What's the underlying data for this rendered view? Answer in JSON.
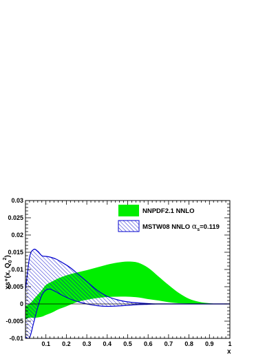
{
  "chart_data": {
    "type": "area",
    "title": "",
    "xlabel": "x",
    "ylabel_parts": {
      "base": "xs⁺(x, Q",
      "sub": "0",
      "sup": "2",
      "close": ")"
    },
    "xlim": [
      0.0,
      1.0
    ],
    "ylim": [
      -0.01,
      0.03
    ],
    "x_ticks": [
      0.1,
      0.2,
      0.3,
      0.4,
      0.5,
      0.6,
      0.7,
      0.8,
      0.9,
      1
    ],
    "x_tick_labels": [
      "0.1",
      "0.2",
      "0.3",
      "0.4",
      "0.5",
      "0.6",
      "0.7",
      "0.8",
      "0.9",
      "1"
    ],
    "y_ticks": [
      -0.01,
      -0.005,
      0,
      0.005,
      0.01,
      0.015,
      0.02,
      0.025,
      0.03
    ],
    "y_tick_labels": [
      "-0.01",
      "-0.005",
      "0",
      "0.005",
      "0.01",
      "0.015",
      "0.02",
      "0.025",
      "0.03"
    ],
    "grid": false,
    "legend_position": "top-right",
    "zero_line": true,
    "series": [
      {
        "name": "NNPDF2.1 NNLO",
        "style": "filled band",
        "color": "#00ee00",
        "x": [
          0.0,
          0.02,
          0.05,
          0.08,
          0.1,
          0.13,
          0.16,
          0.2,
          0.25,
          0.3,
          0.35,
          0.4,
          0.45,
          0.5,
          0.55,
          0.6,
          0.65,
          0.7,
          0.75,
          0.8,
          0.85,
          0.9,
          0.95,
          1.0
        ],
        "upper": [
          -0.0005,
          0.0,
          0.002,
          0.004,
          0.0055,
          0.0065,
          0.0074,
          0.0083,
          0.0091,
          0.0098,
          0.0106,
          0.0114,
          0.012,
          0.0123,
          0.012,
          0.0105,
          0.008,
          0.0055,
          0.0032,
          0.0015,
          0.0006,
          0.0002,
          0.0,
          0.0
        ],
        "lower": [
          -0.0045,
          -0.004,
          -0.004,
          -0.0037,
          -0.0032,
          -0.0025,
          -0.0016,
          -0.0007,
          0.0005,
          0.0012,
          0.0017,
          0.002,
          0.0021,
          0.0021,
          0.0019,
          0.0014,
          0.001,
          0.0005,
          0.0002,
          0.0001,
          0.0,
          0.0,
          0.0,
          0.0
        ]
      },
      {
        "name": "MSTW08 NNLO α_s=0.119",
        "style": "hatched band",
        "color": "#0000cc",
        "x": [
          0.0,
          0.02,
          0.04,
          0.06,
          0.08,
          0.1,
          0.12,
          0.15,
          0.18,
          0.22,
          0.26,
          0.3,
          0.35,
          0.4,
          0.45,
          0.5,
          0.55,
          0.6,
          0.65,
          0.7,
          0.8,
          0.9,
          1.0
        ],
        "upper": [
          0.004,
          0.0135,
          0.0158,
          0.0153,
          0.014,
          0.0138,
          0.0136,
          0.013,
          0.012,
          0.0105,
          0.0085,
          0.0065,
          0.004,
          0.0022,
          0.0012,
          0.0006,
          0.0003,
          0.0001,
          0.0,
          0.0,
          0.0,
          0.0,
          0.0
        ],
        "lower": [
          -0.0095,
          -0.0098,
          -0.0055,
          -0.001,
          0.0025,
          0.004,
          0.0043,
          0.0035,
          0.0025,
          0.0014,
          0.0006,
          0.0,
          -0.0005,
          -0.0007,
          -0.0006,
          -0.0004,
          -0.0002,
          -0.0001,
          0.0,
          0.0,
          0.0,
          0.0,
          0.0
        ]
      }
    ],
    "legend": [
      {
        "label": "NNPDF2.1 NNLO"
      },
      {
        "label_main": "MSTW08 NNLO ",
        "alpha": "α",
        "sub": "s",
        "suffix": "=0.119"
      }
    ]
  }
}
